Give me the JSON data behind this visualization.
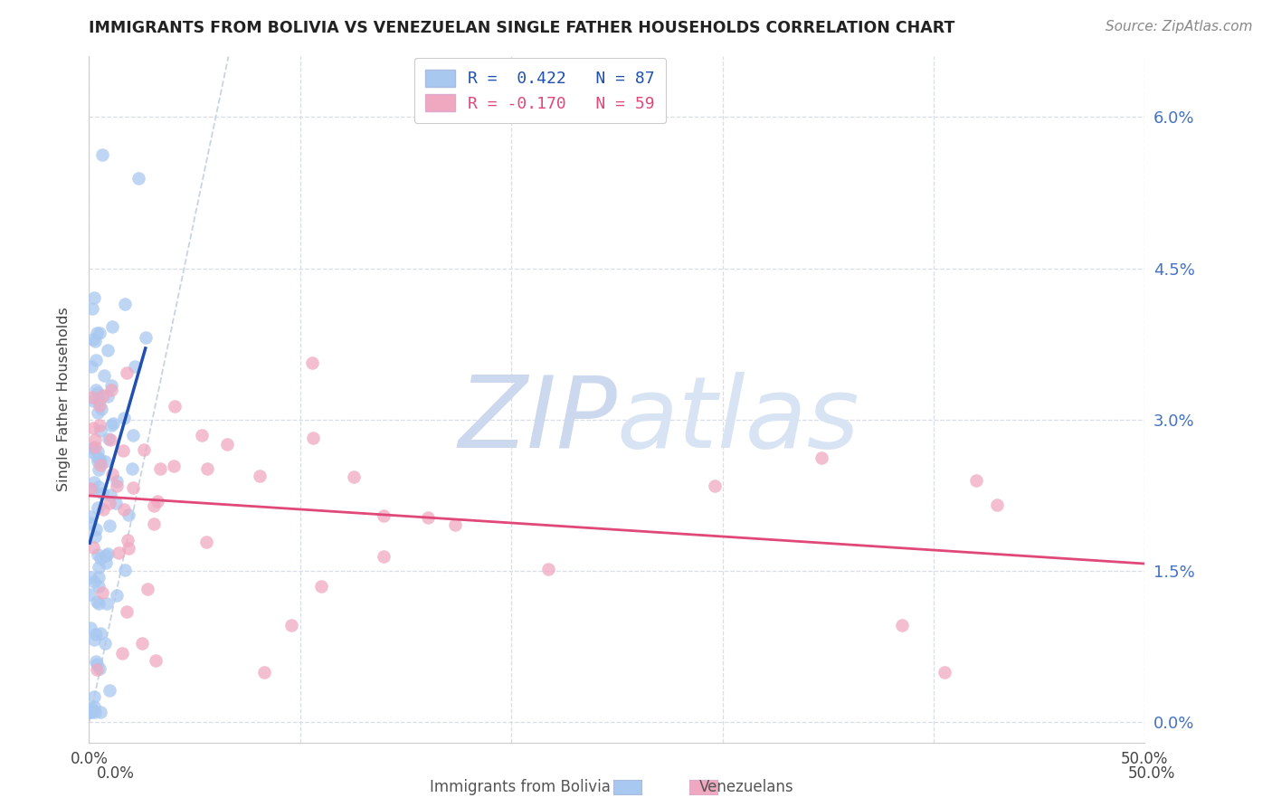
{
  "title": "IMMIGRANTS FROM BOLIVIA VS VENEZUELAN SINGLE FATHER HOUSEHOLDS CORRELATION CHART",
  "source": "Source: ZipAtlas.com",
  "ylabel": "Single Father Households",
  "legend_r1": "R =  0.422",
  "legend_n1": "N = 87",
  "legend_r2": "R = -0.170",
  "legend_n2": "N = 59",
  "xlim": [
    0.0,
    0.5
  ],
  "ylim": [
    -0.002,
    0.066
  ],
  "yticks": [
    0.0,
    0.015,
    0.03,
    0.045,
    0.06
  ],
  "ytick_labels_right": [
    "0.0%",
    "1.5%",
    "3.0%",
    "4.5%",
    "6.0%"
  ],
  "xticks": [
    0.0,
    0.1,
    0.2,
    0.3,
    0.4,
    0.5
  ],
  "xtick_labels": [
    "0.0%",
    "",
    "",
    "",
    "",
    "50.0%"
  ],
  "bottom_label1": "Immigrants from Bolivia",
  "bottom_label2": "Venezuelans",
  "color_blue": "#a8c8f0",
  "color_blue_line": "#2050b0",
  "color_pink": "#f0a8c0",
  "color_pink_line": "#e04878",
  "color_diag_line": "#c8d4e4",
  "watermark_color": "#ccd8ed",
  "grid_color": "#d8dde8",
  "tick_color_right": "#4472c4",
  "r_bolivia": 0.422,
  "n_bolivia": 87,
  "r_venezuela": -0.17,
  "n_venezuela": 59
}
